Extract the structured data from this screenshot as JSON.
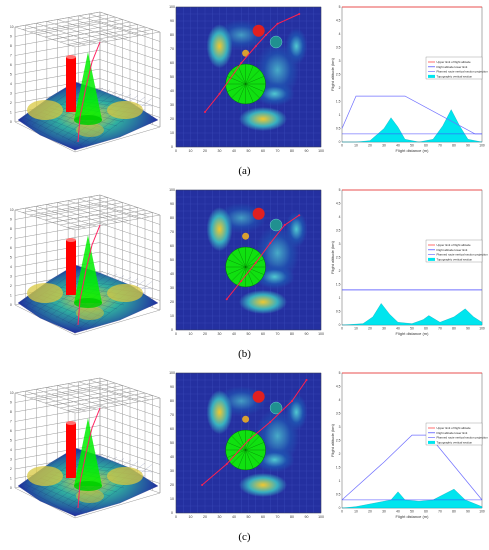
{
  "rows": [
    {
      "label": "(a)",
      "profile": {
        "upper_limit": 5,
        "lower_limit": 0.3,
        "planned_path": [
          [
            0,
            0.5
          ],
          [
            10,
            1.7
          ],
          [
            45,
            1.7
          ],
          [
            95,
            0.3
          ],
          [
            100,
            0.3
          ]
        ],
        "terrain": [
          [
            0,
            0
          ],
          [
            10,
            0
          ],
          [
            20,
            0.05
          ],
          [
            30,
            0.5
          ],
          [
            35,
            0.9
          ],
          [
            40,
            0.55
          ],
          [
            45,
            0.1
          ],
          [
            55,
            0
          ],
          [
            65,
            0.1
          ],
          [
            72,
            0.6
          ],
          [
            78,
            1.2
          ],
          [
            84,
            0.6
          ],
          [
            90,
            0.1
          ],
          [
            100,
            0
          ]
        ]
      },
      "map_route": [
        [
          20,
          25
        ],
        [
          30,
          38
        ],
        [
          45,
          60
        ],
        [
          55,
          72
        ],
        [
          62,
          80
        ],
        [
          70,
          88
        ],
        [
          85,
          95
        ]
      ]
    },
    {
      "label": "(b)",
      "profile": {
        "upper_limit": 5,
        "lower_limit": 1.3,
        "planned_path": [
          [
            0,
            1.3
          ],
          [
            100,
            1.3
          ]
        ],
        "terrain": [
          [
            0,
            0
          ],
          [
            15,
            0.05
          ],
          [
            22,
            0.3
          ],
          [
            28,
            0.8
          ],
          [
            34,
            0.4
          ],
          [
            40,
            0.1
          ],
          [
            50,
            0.05
          ],
          [
            58,
            0.2
          ],
          [
            62,
            0.35
          ],
          [
            70,
            0.1
          ],
          [
            80,
            0.3
          ],
          [
            88,
            0.6
          ],
          [
            94,
            0.3
          ],
          [
            100,
            0.1
          ]
        ]
      },
      "map_route": [
        [
          35,
          22
        ],
        [
          45,
          35
        ],
        [
          55,
          48
        ],
        [
          65,
          62
        ],
        [
          75,
          75
        ],
        [
          85,
          82
        ]
      ]
    },
    {
      "label": "(c)",
      "profile": {
        "upper_limit": 5,
        "lower_limit": 0.3,
        "planned_path": [
          [
            0,
            0.3
          ],
          [
            30,
            1.7
          ],
          [
            50,
            2.7
          ],
          [
            62,
            2.7
          ],
          [
            100,
            0.3
          ]
        ],
        "terrain": [
          [
            0,
            0
          ],
          [
            10,
            0.05
          ],
          [
            25,
            0.2
          ],
          [
            35,
            0.3
          ],
          [
            40,
            0.6
          ],
          [
            45,
            0.3
          ],
          [
            55,
            0.25
          ],
          [
            65,
            0.3
          ],
          [
            80,
            0.7
          ],
          [
            88,
            0.3
          ],
          [
            100,
            0.05
          ]
        ]
      },
      "map_route": [
        [
          18,
          20
        ],
        [
          35,
          35
        ],
        [
          50,
          52
        ],
        [
          65,
          65
        ],
        [
          80,
          80
        ],
        [
          90,
          95
        ]
      ]
    }
  ],
  "legend": [
    "Upper limit of flight altitude",
    "Flight altitude lower limit",
    "Planned route vertical section projection",
    "Topographic vertical section"
  ],
  "ylabel": "Flight altitude (km)",
  "xlabel": "Flight distance (m)",
  "map_ticks": [
    "0",
    "10",
    "20",
    "30",
    "40",
    "50",
    "60",
    "70",
    "80",
    "90",
    "100"
  ],
  "profile_yticks": [
    "0",
    "0.5",
    "1",
    "1.5",
    "2",
    "2.5",
    "3",
    "3.5",
    "4",
    "4.5",
    "5"
  ],
  "colors": {
    "upper_limit": "#ff3030",
    "lower_limit": "#4040ff",
    "planned": "#7070ff",
    "terrain": "#00e5ee",
    "threat_red": "#ff0000",
    "threat_green": "#00ee00"
  }
}
